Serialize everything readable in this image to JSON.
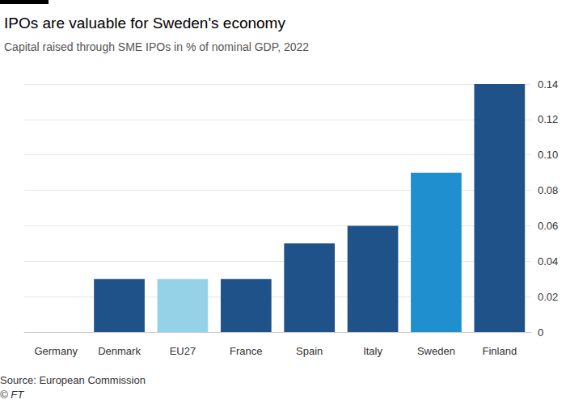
{
  "chart_data": {
    "type": "bar",
    "title": "IPOs are valuable for Sweden's economy",
    "subtitle": "Capital raised through SME IPOs in % of nominal GDP, 2022",
    "categories": [
      "Germany",
      "Denmark",
      "EU27",
      "France",
      "Spain",
      "Italy",
      "Sweden",
      "Finland"
    ],
    "values": [
      0,
      0.03,
      0.03,
      0.03,
      0.05,
      0.06,
      0.09,
      0.14
    ],
    "colors": [
      "#1e5289",
      "#1e5289",
      "#96d2e7",
      "#1e5289",
      "#1e5289",
      "#1e5289",
      "#1f8fd0",
      "#1e5289"
    ],
    "ylim": [
      0,
      0.14
    ],
    "yticks": [
      0,
      0.02,
      0.04,
      0.06,
      0.08,
      {
        "value": 0.1,
        "label": "0.10"
      },
      0.12,
      0.14
    ],
    "grid": true,
    "source": "Source: European Commission",
    "credit": "© FT"
  }
}
